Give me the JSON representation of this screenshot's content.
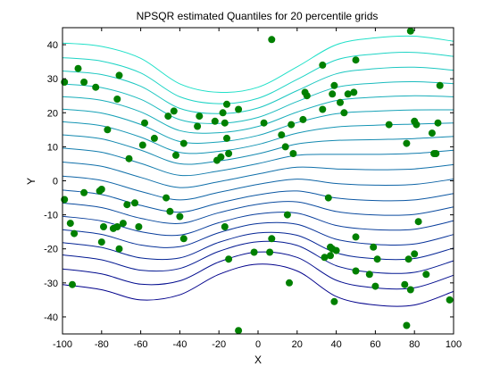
{
  "chart_data": {
    "type": "scatter",
    "title": "NPSQR estimated Quantiles for 20 percentile grids",
    "xlabel": "X",
    "ylabel": "Y",
    "xlim": [
      -100,
      100
    ],
    "ylim": [
      -45,
      45
    ],
    "xticks": [
      -100,
      -80,
      -60,
      -40,
      -20,
      0,
      20,
      40,
      60,
      80,
      100
    ],
    "yticks": [
      -40,
      -30,
      -20,
      -10,
      0,
      10,
      20,
      30,
      40
    ],
    "grid": false,
    "legend": "none",
    "quantile_curves": {
      "count": 19,
      "x_samples": [
        -100,
        -80,
        -60,
        -40,
        -20,
        0,
        20,
        40,
        60,
        80,
        100
      ],
      "offsets": [
        -33.5,
        -29,
        -25,
        -21.5,
        -17.8,
        -14,
        -10.2,
        -6.5,
        -2.5,
        1.5,
        5.5,
        9.3,
        13.0,
        16.6,
        20.2,
        23.8,
        27.5,
        31.3,
        35.5
      ],
      "shape_low": [
        3,
        1.5,
        -1.5,
        0,
        6,
        9,
        7,
        -0.5,
        -3,
        -3,
        1
      ],
      "shape_high": [
        5,
        4,
        0.5,
        -7,
        -9.5,
        -8,
        -2,
        4.5,
        6.5,
        7,
        5.5
      ],
      "color_low": "#00008b",
      "color_high": "#20e0c8"
    },
    "point_color": "#008000",
    "points": [
      {
        "x": -99,
        "y": 29
      },
      {
        "x": -99,
        "y": -5.5
      },
      {
        "x": -96,
        "y": -12.5
      },
      {
        "x": -95,
        "y": -30.5
      },
      {
        "x": -94,
        "y": -15.5
      },
      {
        "x": -92,
        "y": 33
      },
      {
        "x": -89,
        "y": 29
      },
      {
        "x": -89,
        "y": -3.5
      },
      {
        "x": -83,
        "y": 27.5
      },
      {
        "x": -81,
        "y": -3
      },
      {
        "x": -80,
        "y": -2.5
      },
      {
        "x": -80,
        "y": -18
      },
      {
        "x": -79,
        "y": -13.5
      },
      {
        "x": -77,
        "y": 15
      },
      {
        "x": -74,
        "y": -14
      },
      {
        "x": -72,
        "y": -13.5
      },
      {
        "x": -72,
        "y": 24
      },
      {
        "x": -71,
        "y": -20
      },
      {
        "x": -71,
        "y": 31
      },
      {
        "x": -69,
        "y": -12.5
      },
      {
        "x": -67,
        "y": -7
      },
      {
        "x": -66,
        "y": 6.5
      },
      {
        "x": -63,
        "y": -6.5
      },
      {
        "x": -61,
        "y": -13.5
      },
      {
        "x": -59,
        "y": 10.5
      },
      {
        "x": -58,
        "y": 17
      },
      {
        "x": -53,
        "y": 12.5
      },
      {
        "x": -47,
        "y": -5
      },
      {
        "x": -46,
        "y": 19
      },
      {
        "x": -45,
        "y": -9
      },
      {
        "x": -43,
        "y": 20.5
      },
      {
        "x": -42,
        "y": 7.5
      },
      {
        "x": -40,
        "y": -10.5
      },
      {
        "x": -38,
        "y": 11
      },
      {
        "x": -38,
        "y": -17
      },
      {
        "x": -31,
        "y": 16
      },
      {
        "x": -30,
        "y": 19
      },
      {
        "x": -22,
        "y": 17.5
      },
      {
        "x": -21,
        "y": 6
      },
      {
        "x": -19,
        "y": 7
      },
      {
        "x": -18,
        "y": 20
      },
      {
        "x": -17,
        "y": 17
      },
      {
        "x": -17,
        "y": -13.5
      },
      {
        "x": -16,
        "y": 22.5
      },
      {
        "x": -16,
        "y": 12.5
      },
      {
        "x": -15,
        "y": -23
      },
      {
        "x": -15,
        "y": 8
      },
      {
        "x": -10,
        "y": 21
      },
      {
        "x": -10,
        "y": -44
      },
      {
        "x": -2,
        "y": -21
      },
      {
        "x": 3,
        "y": 17
      },
      {
        "x": 6,
        "y": -21
      },
      {
        "x": 7,
        "y": 41.5
      },
      {
        "x": 7,
        "y": -17
      },
      {
        "x": 12,
        "y": 13.5
      },
      {
        "x": 14,
        "y": 10
      },
      {
        "x": 15,
        "y": -10
      },
      {
        "x": 16,
        "y": -30
      },
      {
        "x": 17,
        "y": 16.5
      },
      {
        "x": 18,
        "y": 8
      },
      {
        "x": 23,
        "y": 18
      },
      {
        "x": 24,
        "y": 26
      },
      {
        "x": 25,
        "y": 25
      },
      {
        "x": 33,
        "y": 34
      },
      {
        "x": 33,
        "y": 21
      },
      {
        "x": 34,
        "y": -22.5
      },
      {
        "x": 36,
        "y": -5
      },
      {
        "x": 37,
        "y": -22
      },
      {
        "x": 37,
        "y": -19.5
      },
      {
        "x": 38,
        "y": 25.5
      },
      {
        "x": 38,
        "y": -20
      },
      {
        "x": 39,
        "y": -35.5
      },
      {
        "x": 39,
        "y": 28
      },
      {
        "x": 40,
        "y": -20.5
      },
      {
        "x": 42,
        "y": 23
      },
      {
        "x": 44,
        "y": 20
      },
      {
        "x": 46,
        "y": 25.5
      },
      {
        "x": 49,
        "y": 26
      },
      {
        "x": 50,
        "y": 35.5
      },
      {
        "x": 50,
        "y": -26.5
      },
      {
        "x": 50,
        "y": -16.5
      },
      {
        "x": 57,
        "y": -27.5
      },
      {
        "x": 59,
        "y": -19.5
      },
      {
        "x": 60,
        "y": -31
      },
      {
        "x": 61,
        "y": -23
      },
      {
        "x": 67,
        "y": 16.5
      },
      {
        "x": 75,
        "y": -30.5
      },
      {
        "x": 76,
        "y": 11
      },
      {
        "x": 76,
        "y": -42.5
      },
      {
        "x": 77,
        "y": -23
      },
      {
        "x": 78,
        "y": -32
      },
      {
        "x": 78,
        "y": 44
      },
      {
        "x": 80,
        "y": -21.5
      },
      {
        "x": 80,
        "y": 17.5
      },
      {
        "x": 81,
        "y": 16.5
      },
      {
        "x": 82,
        "y": -12
      },
      {
        "x": 86,
        "y": -27.5
      },
      {
        "x": 89,
        "y": 14
      },
      {
        "x": 90,
        "y": 8
      },
      {
        "x": 91,
        "y": 8
      },
      {
        "x": 92,
        "y": 17
      },
      {
        "x": 93,
        "y": 28
      },
      {
        "x": 98,
        "y": -35
      }
    ]
  }
}
